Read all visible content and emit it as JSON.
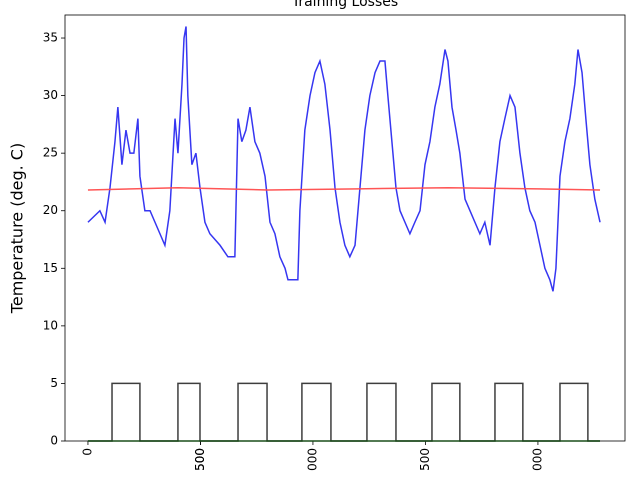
{
  "chart_data": {
    "type": "line",
    "title": "Training Losses",
    "ylabel": "Temperature (deg. C)",
    "xlim": [
      -102,
      2387
    ],
    "ylim": [
      0,
      37
    ],
    "xticks": [
      0,
      500,
      {
        "value": 1000,
        "label": "000"
      },
      500,
      {
        "value": 1500,
        "label": "500"
      },
      {
        "value": 2000,
        "label": "000"
      }
    ],
    "yticks": [
      0,
      5,
      10,
      15,
      20,
      25,
      30,
      35
    ],
    "series": [
      {
        "color": "#2b2bf0",
        "x": [
          0,
          53,
          76,
          98,
          120,
          133,
          151,
          169,
          187,
          204,
          222,
          231,
          253,
          276,
          298,
          320,
          342,
          364,
          387,
          400,
          418,
          427,
          436,
          444,
          462,
          480,
          498,
          520,
          542,
          587,
          622,
          653,
          667,
          684,
          702,
          720,
          742,
          764,
          787,
          809,
          831,
          853,
          876,
          889,
          933,
          942,
          964,
          987,
          1009,
          1031,
          1053,
          1076,
          1098,
          1120,
          1142,
          1164,
          1187,
          1209,
          1231,
          1253,
          1276,
          1298,
          1320,
          1333,
          1351,
          1369,
          1387,
          1409,
          1431,
          1453,
          1476,
          1498,
          1520,
          1542,
          1564,
          1587,
          1600,
          1618,
          1636,
          1653,
          1676,
          1698,
          1720,
          1742,
          1764,
          1787,
          1809,
          1831,
          1853,
          1876,
          1898,
          1920,
          1942,
          1964,
          1987,
          2009,
          2031,
          2053,
          2067,
          2080,
          2098,
          2120,
          2142,
          2164,
          2178,
          2196,
          2213,
          2231,
          2253,
          2276
        ],
        "values": [
          19,
          20,
          19,
          22,
          26,
          29,
          24,
          27,
          25,
          25,
          28,
          23,
          20,
          20,
          19,
          18,
          17,
          20,
          28,
          25,
          31,
          35,
          36,
          30,
          24,
          25,
          22,
          19,
          18,
          17,
          16,
          16,
          28,
          26,
          27,
          29,
          26,
          25,
          23,
          19,
          18,
          16,
          15,
          14,
          14,
          20,
          27,
          30,
          32,
          33,
          31,
          27,
          22,
          19,
          17,
          16,
          17,
          22,
          27,
          30,
          32,
          33,
          33,
          30,
          26,
          22,
          20,
          19,
          18,
          19,
          20,
          24,
          26,
          29,
          31,
          34,
          33,
          29,
          27,
          25,
          21,
          20,
          19,
          18,
          19,
          17,
          22,
          26,
          28,
          30,
          29,
          25,
          22,
          20,
          19,
          17,
          15,
          14,
          13,
          15,
          23,
          26,
          28,
          31,
          34,
          32,
          28,
          24,
          21,
          19
        ]
      },
      {
        "color": "#ff4c4c",
        "x": [
          0,
          400,
          800,
          1200,
          1600,
          2000,
          2276
        ],
        "values": [
          21.8,
          22,
          21.8,
          21.9,
          22,
          21.9,
          21.8
        ]
      },
      {
        "color": "#333333",
        "x": [
          0,
          107,
          107,
          231,
          231,
          400,
          400,
          498,
          498,
          667,
          667,
          796,
          796,
          951,
          951,
          1080,
          1080,
          1240,
          1240,
          1369,
          1369,
          1529,
          1529,
          1653,
          1653,
          1809,
          1809,
          1933,
          1933,
          2098,
          2098,
          2222,
          2222,
          2276
        ],
        "values": [
          0,
          0,
          5,
          5,
          0,
          0,
          5,
          5,
          0,
          0,
          5,
          5,
          0,
          0,
          5,
          5,
          0,
          0,
          5,
          5,
          0,
          0,
          5,
          5,
          0,
          0,
          5,
          5,
          0,
          0,
          5,
          5,
          0,
          0
        ]
      },
      {
        "color": "#2ca02c",
        "x": [
          0,
          2276
        ],
        "values": [
          0,
          0
        ]
      }
    ]
  }
}
